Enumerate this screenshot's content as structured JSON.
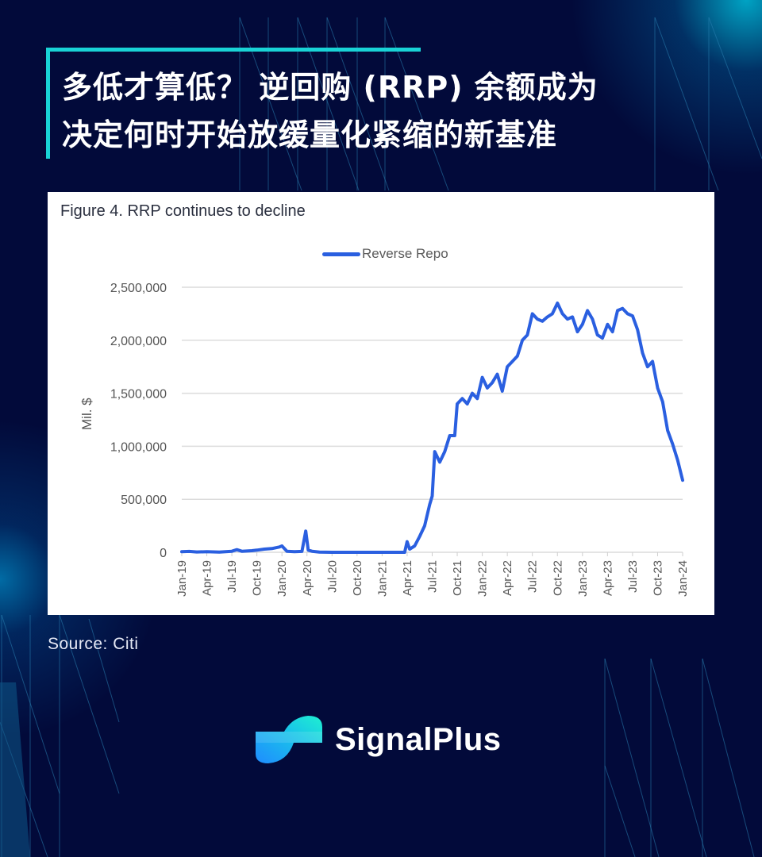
{
  "header": {
    "title_line1": "多低才算低？ 逆回购 (RRP) 余额成为",
    "title_line2": "决定何时开始放缓量化紧缩的新基准"
  },
  "chart_card": {
    "figure_title": "Figure 4. RRP continues to decline",
    "legend_label": "Reverse Repo",
    "y_axis_label": "Mil. $"
  },
  "source": "Source: Citi",
  "brand": {
    "name": "SignalPlus"
  },
  "colors": {
    "background": "#020a3a",
    "accent": "#19d3d6",
    "series": "#2a5fe0",
    "gridline": "#dcdcdc"
  },
  "chart_data": {
    "type": "line",
    "title": "Figure 4. RRP continues to decline",
    "xlabel": "",
    "ylabel": "Mil. $",
    "ylim": [
      0,
      2500000
    ],
    "grid": true,
    "legend_position": "top-center",
    "yticks": [
      "0",
      "500,000",
      "1,000,000",
      "1,500,000",
      "2,000,000",
      "2,500,000"
    ],
    "xticks": [
      "Jan-19",
      "Apr-19",
      "Jul-19",
      "Oct-19",
      "Jan-20",
      "Apr-20",
      "Jul-20",
      "Oct-20",
      "Jan-21",
      "Apr-21",
      "Jul-21",
      "Oct-21",
      "Jan-22",
      "Apr-22",
      "Jul-22",
      "Oct-22",
      "Jan-23",
      "Apr-23",
      "Jul-23",
      "Oct-23",
      "Jan-24"
    ],
    "series": [
      {
        "name": "Reverse Repo",
        "x": [
          0,
          0.3,
          0.6,
          1,
          1.5,
          2,
          2.2,
          2.4,
          2.8,
          3,
          3.3,
          3.6,
          3.9,
          4.0,
          4.2,
          4.5,
          4.8,
          4.95,
          5.05,
          5.2,
          5.5,
          6,
          7,
          8,
          8.9,
          9.0,
          9.1,
          9.3,
          9.5,
          9.7,
          9.9,
          10.0,
          10.1,
          10.3,
          10.5,
          10.7,
          10.9,
          11.0,
          11.2,
          11.4,
          11.6,
          11.8,
          12.0,
          12.2,
          12.4,
          12.6,
          12.8,
          13.0,
          13.2,
          13.4,
          13.6,
          13.8,
          14.0,
          14.2,
          14.4,
          14.6,
          14.8,
          15.0,
          15.2,
          15.4,
          15.6,
          15.8,
          16.0,
          16.2,
          16.4,
          16.6,
          16.8,
          17.0,
          17.2,
          17.4,
          17.6,
          17.8,
          18.0,
          18.2,
          18.4,
          18.6,
          18.8,
          19.0,
          19.2,
          19.4,
          19.6,
          19.8,
          20.0
        ],
        "values": [
          5000,
          8000,
          3000,
          5000,
          2000,
          10000,
          25000,
          10000,
          15000,
          20000,
          30000,
          35000,
          50000,
          60000,
          10000,
          5000,
          8000,
          200000,
          20000,
          10000,
          2000,
          0,
          0,
          0,
          0,
          100000,
          30000,
          60000,
          150000,
          250000,
          450000,
          530000,
          950000,
          850000,
          950000,
          1100000,
          1100000,
          1400000,
          1450000,
          1400000,
          1500000,
          1450000,
          1650000,
          1550000,
          1600000,
          1680000,
          1520000,
          1750000,
          1800000,
          1850000,
          2000000,
          2050000,
          2250000,
          2200000,
          2180000,
          2220000,
          2250000,
          2350000,
          2250000,
          2200000,
          2220000,
          2080000,
          2150000,
          2280000,
          2200000,
          2050000,
          2020000,
          2150000,
          2080000,
          2280000,
          2300000,
          2250000,
          2230000,
          2100000,
          1880000,
          1750000,
          1800000,
          1550000,
          1420000,
          1150000,
          1020000,
          870000,
          680000
        ]
      }
    ]
  }
}
